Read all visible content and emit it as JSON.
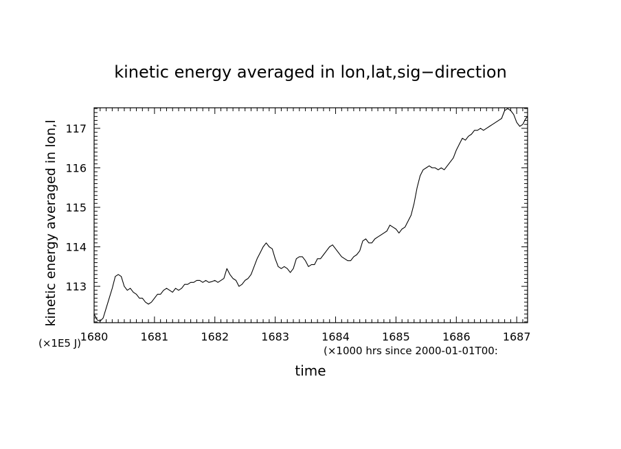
{
  "chart_data": {
    "type": "line",
    "title": "kinetic energy averaged in lon,lat,sig−direction",
    "xlabel": "time",
    "xunit_label": "(×1000 hrs  since 2000-01-01T00:",
    "ylabel": "kinetic energy averaged in lon,l",
    "yunit_label": "(×1E5 J)",
    "xlim": [
      1680,
      1687.18
    ],
    "ylim": [
      112.08,
      117.52
    ],
    "x_ticks": [
      1680,
      1681,
      1682,
      1683,
      1684,
      1685,
      1686,
      1687
    ],
    "y_ticks": [
      113,
      114,
      115,
      116,
      117
    ],
    "grid": false,
    "line_color": "#000000",
    "series": [
      {
        "points": [
          [
            1680.0,
            112.3
          ],
          [
            1680.05,
            112.15
          ],
          [
            1680.1,
            112.12
          ],
          [
            1680.15,
            112.2
          ],
          [
            1680.2,
            112.45
          ],
          [
            1680.25,
            112.7
          ],
          [
            1680.3,
            112.95
          ],
          [
            1680.35,
            113.25
          ],
          [
            1680.4,
            113.3
          ],
          [
            1680.45,
            113.25
          ],
          [
            1680.5,
            113.0
          ],
          [
            1680.55,
            112.9
          ],
          [
            1680.6,
            112.95
          ],
          [
            1680.65,
            112.85
          ],
          [
            1680.7,
            112.8
          ],
          [
            1680.75,
            112.7
          ],
          [
            1680.8,
            112.7
          ],
          [
            1680.85,
            112.6
          ],
          [
            1680.9,
            112.55
          ],
          [
            1680.95,
            112.6
          ],
          [
            1681.0,
            112.7
          ],
          [
            1681.05,
            112.8
          ],
          [
            1681.1,
            112.8
          ],
          [
            1681.15,
            112.9
          ],
          [
            1681.2,
            112.95
          ],
          [
            1681.25,
            112.9
          ],
          [
            1681.3,
            112.85
          ],
          [
            1681.35,
            112.95
          ],
          [
            1681.4,
            112.9
          ],
          [
            1681.45,
            112.95
          ],
          [
            1681.5,
            113.05
          ],
          [
            1681.55,
            113.05
          ],
          [
            1681.6,
            113.1
          ],
          [
            1681.65,
            113.1
          ],
          [
            1681.7,
            113.15
          ],
          [
            1681.75,
            113.15
          ],
          [
            1681.8,
            113.1
          ],
          [
            1681.85,
            113.15
          ],
          [
            1681.9,
            113.1
          ],
          [
            1681.95,
            113.12
          ],
          [
            1682.0,
            113.15
          ],
          [
            1682.05,
            113.1
          ],
          [
            1682.1,
            113.15
          ],
          [
            1682.15,
            113.2
          ],
          [
            1682.2,
            113.45
          ],
          [
            1682.25,
            113.3
          ],
          [
            1682.3,
            113.2
          ],
          [
            1682.35,
            113.15
          ],
          [
            1682.4,
            113.0
          ],
          [
            1682.45,
            113.05
          ],
          [
            1682.5,
            113.15
          ],
          [
            1682.55,
            113.2
          ],
          [
            1682.6,
            113.3
          ],
          [
            1682.65,
            113.5
          ],
          [
            1682.7,
            113.7
          ],
          [
            1682.75,
            113.85
          ],
          [
            1682.8,
            114.0
          ],
          [
            1682.85,
            114.1
          ],
          [
            1682.9,
            114.0
          ],
          [
            1682.95,
            113.95
          ],
          [
            1683.0,
            113.7
          ],
          [
            1683.05,
            113.5
          ],
          [
            1683.1,
            113.45
          ],
          [
            1683.15,
            113.5
          ],
          [
            1683.2,
            113.45
          ],
          [
            1683.25,
            113.35
          ],
          [
            1683.3,
            113.45
          ],
          [
            1683.35,
            113.7
          ],
          [
            1683.4,
            113.75
          ],
          [
            1683.45,
            113.75
          ],
          [
            1683.5,
            113.65
          ],
          [
            1683.55,
            113.5
          ],
          [
            1683.6,
            113.55
          ],
          [
            1683.65,
            113.55
          ],
          [
            1683.7,
            113.7
          ],
          [
            1683.75,
            113.7
          ],
          [
            1683.8,
            113.8
          ],
          [
            1683.85,
            113.9
          ],
          [
            1683.9,
            114.0
          ],
          [
            1683.95,
            114.05
          ],
          [
            1684.0,
            113.95
          ],
          [
            1684.05,
            113.85
          ],
          [
            1684.1,
            113.75
          ],
          [
            1684.15,
            113.7
          ],
          [
            1684.2,
            113.65
          ],
          [
            1684.25,
            113.65
          ],
          [
            1684.3,
            113.75
          ],
          [
            1684.35,
            113.8
          ],
          [
            1684.4,
            113.9
          ],
          [
            1684.45,
            114.15
          ],
          [
            1684.5,
            114.2
          ],
          [
            1684.55,
            114.1
          ],
          [
            1684.6,
            114.1
          ],
          [
            1684.65,
            114.2
          ],
          [
            1684.7,
            114.25
          ],
          [
            1684.75,
            114.3
          ],
          [
            1684.8,
            114.35
          ],
          [
            1684.85,
            114.4
          ],
          [
            1684.9,
            114.55
          ],
          [
            1684.95,
            114.5
          ],
          [
            1685.0,
            114.45
          ],
          [
            1685.05,
            114.35
          ],
          [
            1685.1,
            114.45
          ],
          [
            1685.15,
            114.5
          ],
          [
            1685.2,
            114.65
          ],
          [
            1685.25,
            114.8
          ],
          [
            1685.3,
            115.1
          ],
          [
            1685.35,
            115.5
          ],
          [
            1685.4,
            115.8
          ],
          [
            1685.45,
            115.95
          ],
          [
            1685.5,
            116.0
          ],
          [
            1685.55,
            116.05
          ],
          [
            1685.6,
            116.0
          ],
          [
            1685.65,
            116.0
          ],
          [
            1685.7,
            115.95
          ],
          [
            1685.75,
            116.0
          ],
          [
            1685.8,
            115.95
          ],
          [
            1685.85,
            116.05
          ],
          [
            1685.9,
            116.15
          ],
          [
            1685.95,
            116.25
          ],
          [
            1686.0,
            116.45
          ],
          [
            1686.05,
            116.6
          ],
          [
            1686.1,
            116.75
          ],
          [
            1686.15,
            116.7
          ],
          [
            1686.2,
            116.8
          ],
          [
            1686.25,
            116.85
          ],
          [
            1686.3,
            116.95
          ],
          [
            1686.35,
            116.95
          ],
          [
            1686.4,
            117.0
          ],
          [
            1686.45,
            116.95
          ],
          [
            1686.5,
            117.0
          ],
          [
            1686.55,
            117.05
          ],
          [
            1686.6,
            117.1
          ],
          [
            1686.65,
            117.15
          ],
          [
            1686.7,
            117.2
          ],
          [
            1686.75,
            117.25
          ],
          [
            1686.8,
            117.45
          ],
          [
            1686.85,
            117.5
          ],
          [
            1686.9,
            117.45
          ],
          [
            1686.95,
            117.35
          ],
          [
            1687.0,
            117.15
          ],
          [
            1687.05,
            117.05
          ],
          [
            1687.1,
            117.1
          ],
          [
            1687.15,
            117.25
          ],
          [
            1687.18,
            117.3
          ]
        ]
      }
    ]
  }
}
